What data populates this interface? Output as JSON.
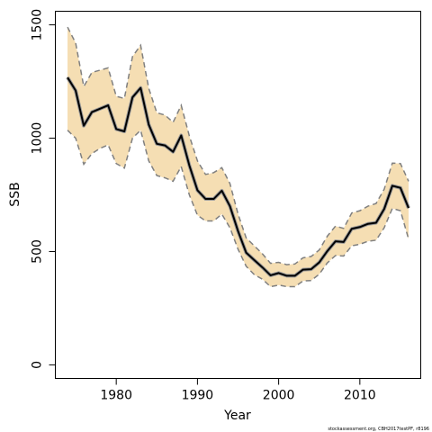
{
  "chart_data": {
    "type": "line",
    "title": "",
    "xlabel": "Year",
    "ylabel": "SSB",
    "xlim": [
      1972.5,
      2017.5
    ],
    "ylim": [
      -60,
      1560
    ],
    "x_ticks": [
      1980,
      1990,
      2000,
      2010
    ],
    "x_tick_labels": [
      "1980",
      "1990",
      "2000",
      "2010"
    ],
    "y_ticks": [
      0,
      500,
      1000,
      1500
    ],
    "y_tick_labels": [
      "0",
      "500",
      "1000",
      "1500"
    ],
    "grid": false,
    "legend": "none",
    "colors": {
      "band": "#f5deb3",
      "estimate": "#000000",
      "bounds": "#808080"
    },
    "x": [
      1974,
      1975,
      1976,
      1977,
      1978,
      1979,
      1980,
      1981,
      1982,
      1983,
      1984,
      1985,
      1986,
      1987,
      1988,
      1989,
      1990,
      1991,
      1992,
      1993,
      1994,
      1995,
      1996,
      1997,
      1998,
      1999,
      2000,
      2001,
      2002,
      2003,
      2004,
      2005,
      2006,
      2007,
      2008,
      2009,
      2010,
      2011,
      2012,
      2013,
      2014,
      2015,
      2016
    ],
    "series": [
      {
        "role": "estimate",
        "values": [
          1268,
          1210,
          1055,
          1115,
          1130,
          1145,
          1040,
          1030,
          1180,
          1222,
          1060,
          975,
          968,
          940,
          1012,
          880,
          770,
          732,
          732,
          768,
          700,
          590,
          495,
          462,
          430,
          395,
          405,
          393,
          393,
          420,
          422,
          452,
          502,
          545,
          542,
          600,
          608,
          622,
          627,
          688,
          790,
          781,
          692
        ]
      },
      {
        "role": "upper",
        "values": [
          1490,
          1420,
          1228,
          1290,
          1300,
          1310,
          1185,
          1175,
          1360,
          1410,
          1220,
          1112,
          1102,
          1070,
          1145,
          1010,
          900,
          840,
          848,
          870,
          800,
          665,
          560,
          525,
          490,
          448,
          452,
          442,
          445,
          472,
          478,
          507,
          568,
          612,
          602,
          670,
          680,
          700,
          712,
          775,
          890,
          888,
          810
        ]
      },
      {
        "role": "lower",
        "values": [
          1035,
          1000,
          885,
          932,
          955,
          970,
          888,
          868,
          1000,
          1035,
          900,
          835,
          825,
          810,
          875,
          750,
          660,
          635,
          635,
          665,
          605,
          510,
          435,
          398,
          378,
          345,
          352,
          345,
          345,
          370,
          372,
          400,
          450,
          482,
          480,
          525,
          532,
          545,
          550,
          605,
          690,
          680,
          555
        ]
      }
    ],
    "credit": "stockassessment.org, CBH2017testPF, r8196"
  }
}
